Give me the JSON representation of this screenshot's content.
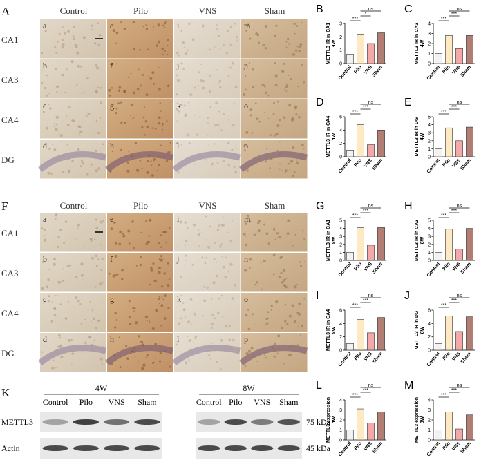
{
  "panel_A": {
    "letter": "A",
    "columns": [
      "Control",
      "Pilo",
      "VNS",
      "Sham"
    ],
    "rows": [
      "CA1",
      "CA3",
      "CA4",
      "DG"
    ],
    "cells": [
      [
        "a",
        "b",
        "c",
        "d"
      ],
      [
        "e",
        "f",
        "g",
        "h"
      ],
      [
        "i",
        "j",
        "k",
        "l"
      ],
      [
        "m",
        "n",
        "o",
        "p"
      ]
    ]
  },
  "panel_F": {
    "letter": "F",
    "columns": [
      "Control",
      "Pilo",
      "VNS",
      "Sham"
    ],
    "rows": [
      "CA1",
      "CA3",
      "CA4",
      "DG"
    ],
    "cells": [
      [
        "a",
        "b",
        "c",
        "d"
      ],
      [
        "e",
        "f",
        "g",
        "h"
      ],
      [
        "i",
        "j",
        "k",
        "l"
      ],
      [
        "m",
        "n",
        "o",
        "p"
      ]
    ]
  },
  "panel_K": {
    "letter": "K",
    "groups": [
      {
        "label": "4W",
        "lanes": [
          "Control",
          "Pilo",
          "VNS",
          "Sham"
        ]
      },
      {
        "label": "8W",
        "lanes": [
          "Control",
          "Pilo",
          "VNS",
          "Sham"
        ]
      }
    ],
    "rows": [
      {
        "name": "METTL3",
        "size": "75 kDa"
      },
      {
        "name": "Actin",
        "size": "45 kDa"
      }
    ]
  },
  "chart_data": [
    {
      "type": "bar",
      "panel": "B",
      "ylabel": [
        "METTL3 IR in CA1",
        "4W"
      ],
      "categories": [
        "Control",
        "Pilo",
        "VNS",
        "Sham"
      ],
      "values": [
        0.7,
        2.2,
        1.5,
        2.3
      ],
      "colors": [
        "#f2f2f2",
        "#fde9c4",
        "#f4a9a8",
        "#b27d72"
      ],
      "ylim": [
        0,
        3
      ],
      "yticks": [
        0,
        1,
        2,
        3
      ],
      "annotations": [
        "***",
        "*",
        "ns"
      ]
    },
    {
      "type": "bar",
      "panel": "C",
      "ylabel": [
        "METTL3 IR in CA3",
        "4W"
      ],
      "categories": [
        "Control",
        "Pilo",
        "VNS",
        "Sham"
      ],
      "values": [
        1.0,
        2.8,
        1.5,
        2.8
      ],
      "colors": [
        "#f2f2f2",
        "#fde9c4",
        "#f4a9a8",
        "#b27d72"
      ],
      "ylim": [
        0,
        4
      ],
      "yticks": [
        0,
        1,
        2,
        3,
        4
      ],
      "annotations": [
        "***",
        "***",
        "ns"
      ]
    },
    {
      "type": "bar",
      "panel": "D",
      "ylabel": [
        "METTL3 IR in CA4",
        "4W"
      ],
      "categories": [
        "Control",
        "Pilo",
        "VNS",
        "Sham"
      ],
      "values": [
        1.0,
        4.8,
        1.8,
        4.0
      ],
      "colors": [
        "#f2f2f2",
        "#fde9c4",
        "#f4a9a8",
        "#b27d72"
      ],
      "ylim": [
        0,
        6
      ],
      "yticks": [
        0,
        2,
        4,
        6
      ],
      "annotations": [
        "***",
        "***",
        "ns"
      ]
    },
    {
      "type": "bar",
      "panel": "E",
      "ylabel": [
        "METTL3 IR in DG",
        "4W"
      ],
      "categories": [
        "Control",
        "Pilo",
        "VNS",
        "Sham"
      ],
      "values": [
        1.0,
        3.6,
        2.0,
        3.7
      ],
      "colors": [
        "#f2f2f2",
        "#fde9c4",
        "#f4a9a8",
        "#b27d72"
      ],
      "ylim": [
        0,
        5
      ],
      "yticks": [
        0,
        1,
        2,
        3,
        4,
        5
      ],
      "annotations": [
        "***",
        "***",
        "ns"
      ]
    },
    {
      "type": "bar",
      "panel": "G",
      "ylabel": [
        "METTL3 IR in CA1",
        "8W"
      ],
      "categories": [
        "Control",
        "Pilo",
        "VNS",
        "Sham"
      ],
      "values": [
        1.0,
        4.1,
        1.9,
        4.1
      ],
      "colors": [
        "#f2f2f2",
        "#fde9c4",
        "#f4a9a8",
        "#b27d72"
      ],
      "ylim": [
        0,
        5
      ],
      "yticks": [
        0,
        1,
        2,
        3,
        4,
        5
      ],
      "annotations": [
        "***",
        "***",
        "ns"
      ]
    },
    {
      "type": "bar",
      "panel": "H",
      "ylabel": [
        "METTL3 IR in CA3",
        "8W"
      ],
      "categories": [
        "Control",
        "Pilo",
        "VNS",
        "Sham"
      ],
      "values": [
        1.0,
        3.9,
        1.4,
        4.0
      ],
      "colors": [
        "#f2f2f2",
        "#fde9c4",
        "#f4a9a8",
        "#b27d72"
      ],
      "ylim": [
        0,
        5
      ],
      "yticks": [
        0,
        1,
        2,
        3,
        4,
        5
      ],
      "annotations": [
        "***",
        "***",
        "ns"
      ]
    },
    {
      "type": "bar",
      "panel": "I",
      "ylabel": [
        "METTL3 IR in CA4",
        "8W"
      ],
      "categories": [
        "Control",
        "Pilo",
        "VNS",
        "Sham"
      ],
      "values": [
        1.0,
        4.6,
        2.6,
        4.9
      ],
      "colors": [
        "#f2f2f2",
        "#fde9c4",
        "#f4a9a8",
        "#b27d72"
      ],
      "ylim": [
        0,
        6
      ],
      "yticks": [
        0,
        2,
        4,
        6
      ],
      "annotations": [
        "***",
        "***",
        "ns"
      ]
    },
    {
      "type": "bar",
      "panel": "J",
      "ylabel": [
        "METTL3 IR in DG",
        "8W"
      ],
      "categories": [
        "Control",
        "Pilo",
        "VNS",
        "Sham"
      ],
      "values": [
        1.0,
        5.1,
        2.8,
        5.0
      ],
      "colors": [
        "#f2f2f2",
        "#fde9c4",
        "#f4a9a8",
        "#b27d72"
      ],
      "ylim": [
        0,
        6
      ],
      "yticks": [
        0,
        2,
        4,
        6
      ],
      "annotations": [
        "***",
        "***",
        "ns"
      ]
    },
    {
      "type": "bar",
      "panel": "L",
      "ylabel": [
        "METTL3 expression",
        "4W"
      ],
      "categories": [
        "Control",
        "Pilo",
        "VNS",
        "Sham"
      ],
      "values": [
        1.0,
        3.1,
        1.7,
        2.8
      ],
      "colors": [
        "#f2f2f2",
        "#fde9c4",
        "#f4a9a8",
        "#b27d72"
      ],
      "ylim": [
        0,
        4
      ],
      "yticks": [
        0,
        1,
        2,
        3,
        4
      ],
      "annotations": [
        "***",
        "***",
        "ns"
      ]
    },
    {
      "type": "bar",
      "panel": "M",
      "ylabel": [
        "METTL3 expression",
        "8W"
      ],
      "categories": [
        "Control",
        "Pilo",
        "VNS",
        "Sham"
      ],
      "values": [
        1.0,
        2.8,
        1.1,
        2.5
      ],
      "colors": [
        "#f2f2f2",
        "#fde9c4",
        "#f4a9a8",
        "#b27d72"
      ],
      "ylim": [
        0,
        4
      ],
      "yticks": [
        0,
        1,
        2,
        3,
        4
      ],
      "annotations": [
        "***",
        "***",
        "ns"
      ]
    }
  ]
}
